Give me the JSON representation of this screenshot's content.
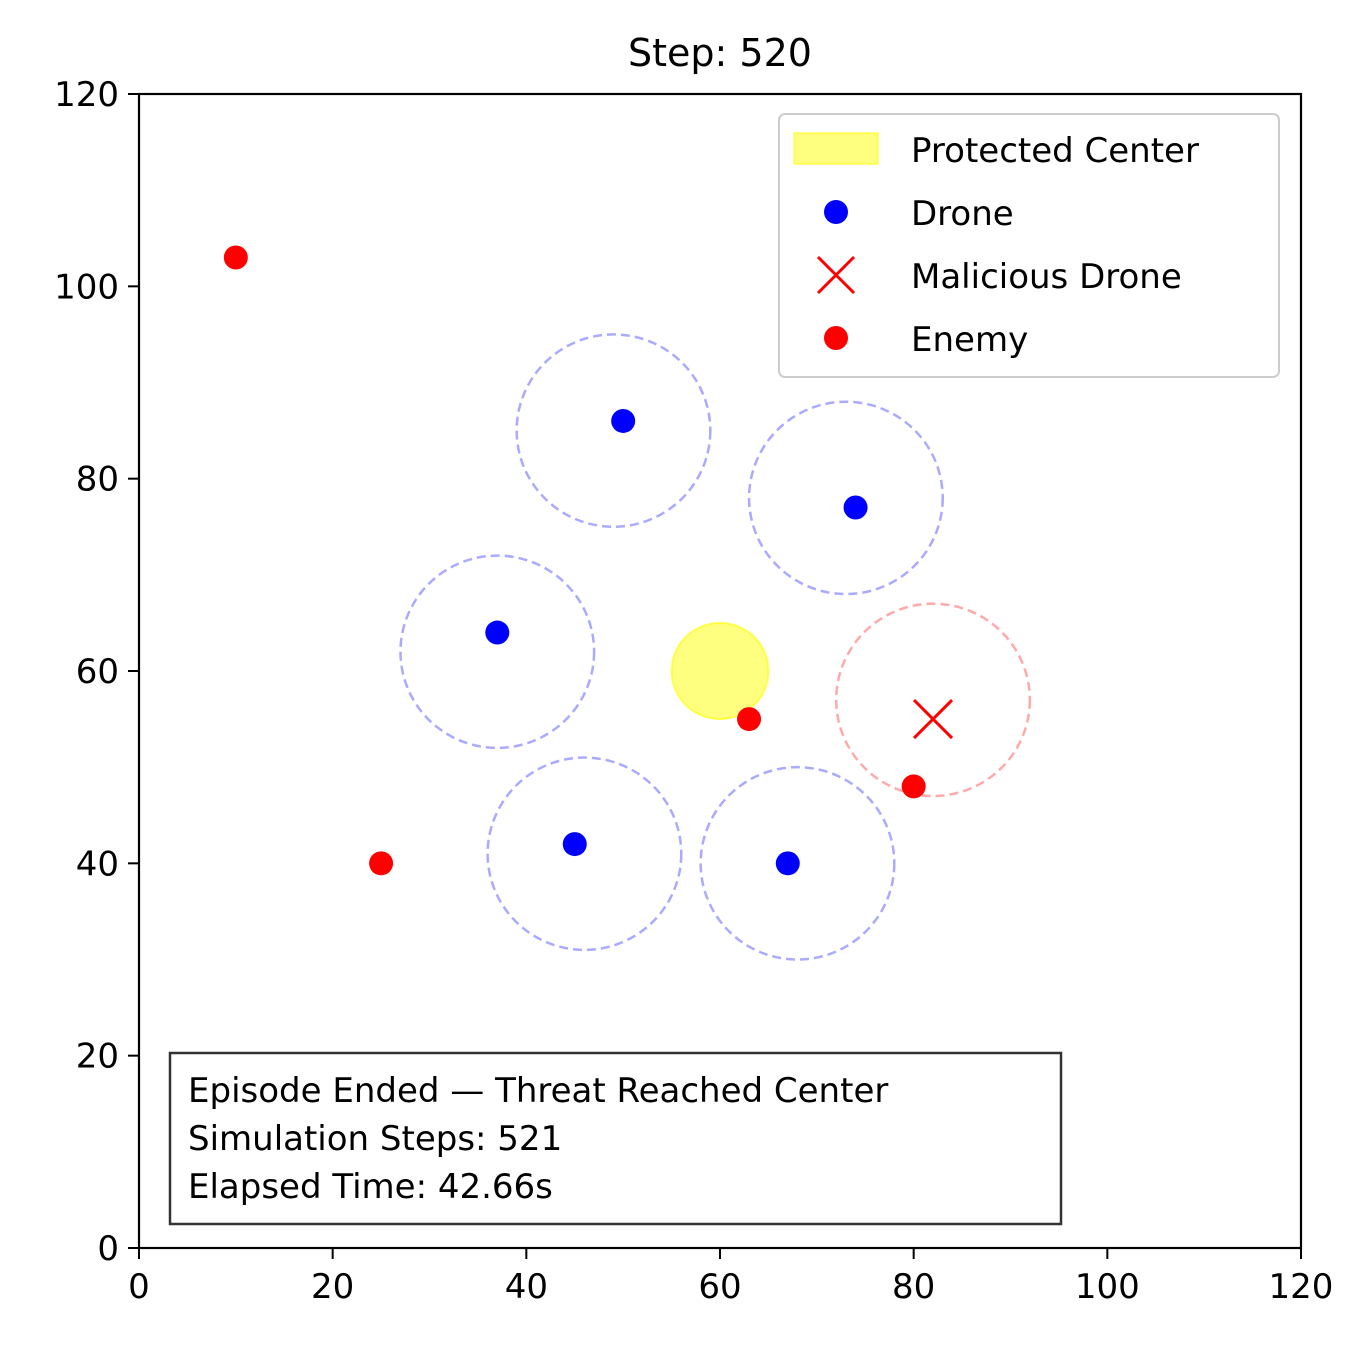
{
  "chart_data": {
    "type": "scatter",
    "title": "Step: 520",
    "xlabel": "",
    "ylabel": "",
    "xlim": [
      0,
      120
    ],
    "ylim": [
      0,
      120
    ],
    "xticks": [
      0,
      20,
      40,
      60,
      80,
      100,
      120
    ],
    "yticks": [
      0,
      20,
      40,
      60,
      80,
      100,
      120
    ],
    "grid": false,
    "legend_position": "top-right",
    "legend": [
      {
        "label": "Protected Center",
        "kind": "patch",
        "color": "#ffff00"
      },
      {
        "label": "Drone",
        "kind": "dot",
        "color": "#0000ff"
      },
      {
        "label": "Malicious Drone",
        "kind": "x",
        "color": "#ff0000"
      },
      {
        "label": "Enemy",
        "kind": "dot",
        "color": "#ff0000"
      }
    ],
    "protected_center": {
      "x": 60,
      "y": 60,
      "radius": 5,
      "color": "#ffff00"
    },
    "drones": [
      {
        "x": 50,
        "y": 86
      },
      {
        "x": 74,
        "y": 77
      },
      {
        "x": 37,
        "y": 64
      },
      {
        "x": 45,
        "y": 42
      },
      {
        "x": 67,
        "y": 40
      }
    ],
    "drone_ranges": [
      {
        "x": 49,
        "y": 85,
        "radius": 10
      },
      {
        "x": 73,
        "y": 78,
        "radius": 10
      },
      {
        "x": 37,
        "y": 62,
        "radius": 10
      },
      {
        "x": 46,
        "y": 41,
        "radius": 10
      },
      {
        "x": 68,
        "y": 40,
        "radius": 10
      }
    ],
    "malicious_drones": [
      {
        "x": 82,
        "y": 55
      }
    ],
    "malicious_ranges": [
      {
        "x": 82,
        "y": 57,
        "radius": 10
      }
    ],
    "enemies": [
      {
        "x": 10,
        "y": 103
      },
      {
        "x": 25,
        "y": 40
      },
      {
        "x": 63,
        "y": 55
      },
      {
        "x": 80,
        "y": 48
      }
    ],
    "colors": {
      "drone": "#0000ff",
      "drone_range": "#aaaaff",
      "malicious": "#ff0000",
      "malicious_range": "#ffaaaa",
      "enemy": "#ff0000",
      "protected": "#ffff00"
    },
    "annotation": [
      "Episode Ended — Threat Reached Center",
      "Simulation Steps: 521",
      "Elapsed Time: 42.66s"
    ]
  }
}
